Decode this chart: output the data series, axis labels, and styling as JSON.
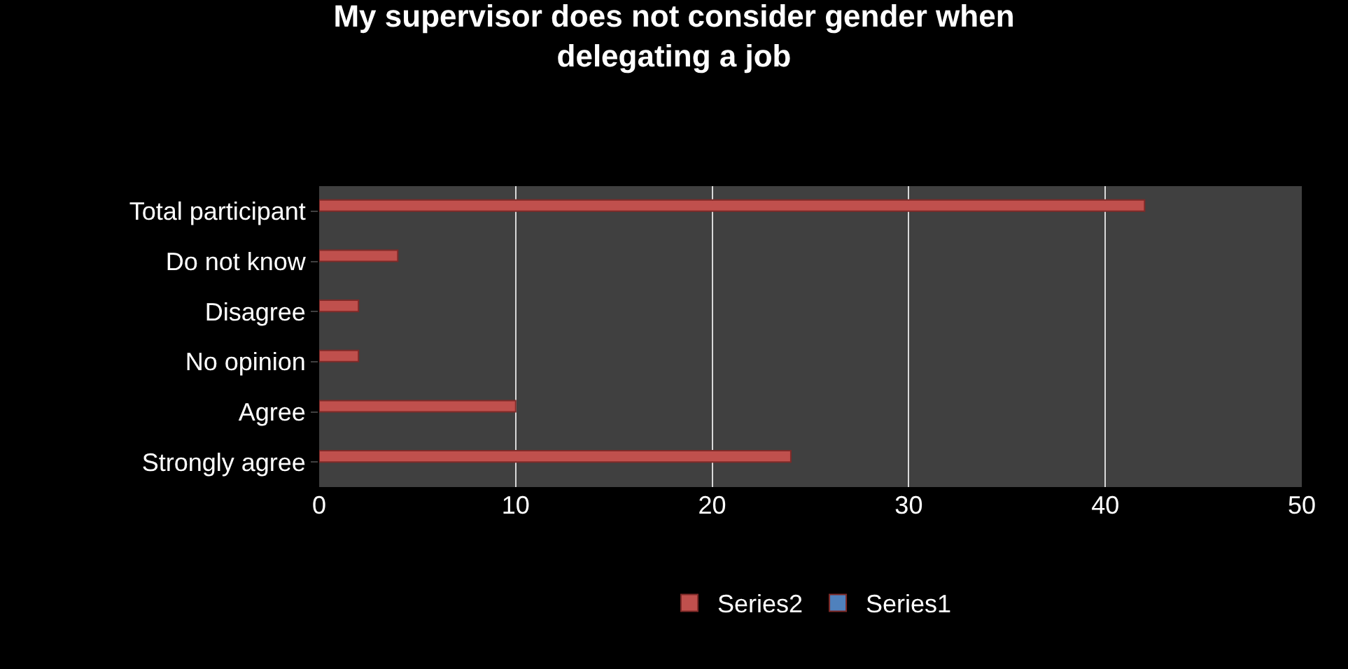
{
  "chart_data": {
    "type": "bar",
    "orientation": "horizontal",
    "title": "My supervisor does not consider gender when delegating a job",
    "categories": [
      "Total participant",
      "Do not know",
      "Disagree",
      "No opinion",
      "Agree",
      "Strongly agree"
    ],
    "series": [
      {
        "name": "Series2",
        "color": "#c0504d",
        "values": [
          42,
          4,
          2,
          2,
          10,
          24
        ]
      },
      {
        "name": "Series1",
        "color": "#4f81bd",
        "values": [
          null,
          null,
          null,
          null,
          null,
          null
        ]
      }
    ],
    "xlim": [
      0,
      50
    ],
    "xticks": [
      0,
      10,
      20,
      30,
      40,
      50
    ],
    "grid": "x",
    "legend": "bottom"
  }
}
